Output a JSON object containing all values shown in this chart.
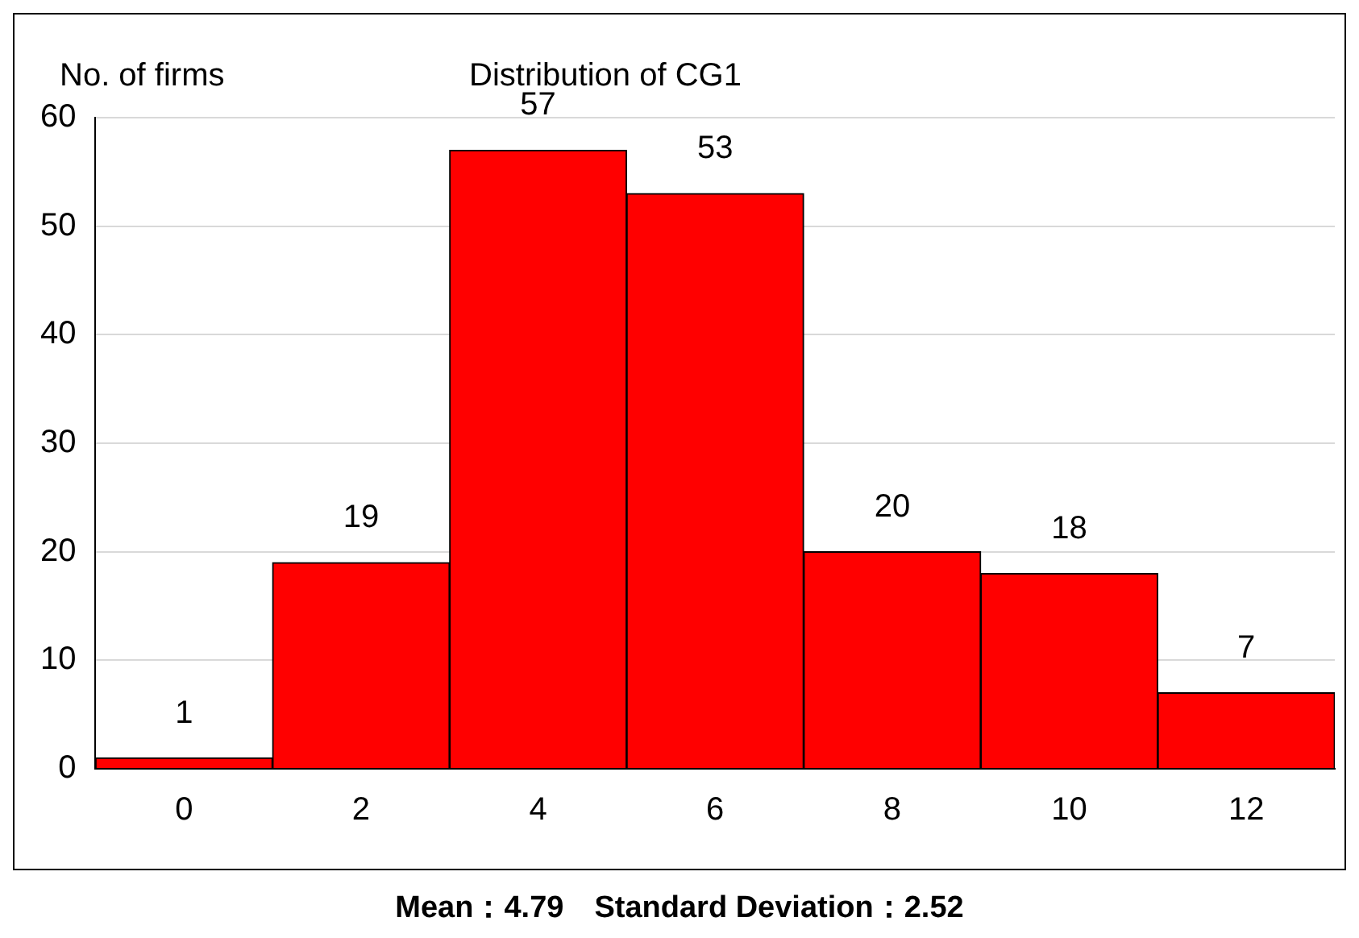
{
  "chart_data": {
    "type": "bar",
    "title": "Distribution of CG1",
    "ylabel": "No. of firms",
    "categories": [
      "0",
      "2",
      "4",
      "6",
      "8",
      "10",
      "12"
    ],
    "values": [
      1,
      19,
      57,
      53,
      20,
      18,
      7
    ],
    "color": "#ff0000",
    "ylim": [
      0,
      60
    ],
    "yticks": [
      0,
      10,
      20,
      30,
      40,
      50,
      60
    ],
    "grid": "y",
    "data_labels": true,
    "legend": false,
    "annotations": [
      "Mean：4.79　Standard Deviation：2.52"
    ]
  }
}
